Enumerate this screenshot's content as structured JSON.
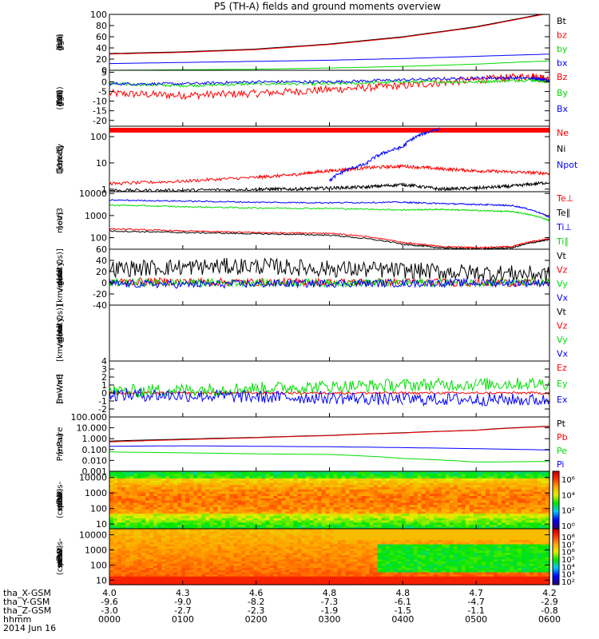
{
  "title": "P5 (TH-A) fields and ground moments overview",
  "colors": {
    "black": "#000000",
    "red": "#ff0000",
    "green": "#00dd00",
    "blue": "#0000ff"
  },
  "chart_data": [
    {
      "id": "fgs_gsm_mag",
      "type": "line",
      "ylabel": [
        "tha",
        "fgs",
        "gsm",
        "[nT]"
      ],
      "yticks": [
        "100",
        "80",
        "60",
        "40",
        "20",
        "0"
      ],
      "ylim": [
        0,
        100
      ],
      "yscale": "linear",
      "x": [
        0,
        60,
        120,
        180,
        240,
        300,
        360
      ],
      "series": [
        {
          "name": "Bt",
          "color": "#000000",
          "values": [
            30,
            33,
            38,
            47,
            60,
            78,
            103
          ]
        },
        {
          "name": "bz",
          "color": "#ff0000",
          "values": [
            29,
            32,
            37,
            46,
            59,
            77,
            102
          ]
        },
        {
          "name": "by",
          "color": "#00dd00",
          "values": [
            0,
            1,
            2,
            4,
            7,
            11,
            17
          ]
        },
        {
          "name": "bx",
          "color": "#0000ff",
          "values": [
            12,
            14,
            16,
            18,
            21,
            25,
            29
          ]
        }
      ]
    },
    {
      "id": "fgs_gsm_detrended",
      "type": "line",
      "ylabel": [
        "tha",
        "fgs",
        "gsm",
        "(-T89)",
        "[nT]"
      ],
      "yticks": [
        "5",
        "0",
        "-5",
        "-10",
        "-15",
        "-20"
      ],
      "ylim": [
        -23,
        6
      ],
      "yscale": "linear",
      "x": [
        0,
        60,
        120,
        180,
        240,
        300,
        345,
        360
      ],
      "series": [
        {
          "name": "Bz",
          "color": "#ff0000",
          "values": [
            -6,
            -7,
            -6,
            -4,
            -2,
            1,
            3,
            1
          ]
        },
        {
          "name": "By",
          "color": "#00dd00",
          "values": [
            -1,
            -2,
            -1,
            -1,
            0,
            0,
            1,
            0
          ]
        },
        {
          "name": "Bx",
          "color": "#0000ff",
          "values": [
            -1,
            -1,
            0,
            0,
            1,
            2,
            2,
            1
          ]
        }
      ]
    },
    {
      "id": "density",
      "type": "line",
      "ylabel": [
        "Density",
        "[1/cc]",
        "[cm-3]"
      ],
      "yticks": [
        "100",
        "10",
        "1"
      ],
      "ylim": [
        0.8,
        250
      ],
      "yscale": "log",
      "x": [
        0,
        60,
        120,
        150,
        180,
        210,
        240,
        270,
        300,
        330,
        360
      ],
      "series": [
        {
          "name": "Ne",
          "color": "#ff0000",
          "values": [
            1.6,
            2.0,
            2.8,
            3.5,
            5,
            6.5,
            7.5,
            6,
            5,
            4.5,
            4
          ]
        },
        {
          "name": "Ni",
          "color": "#000000",
          "values": [
            0.9,
            0.9,
            1.0,
            1.0,
            1.1,
            1.2,
            1.5,
            1.0,
            1.1,
            1.3,
            1.8
          ]
        },
        {
          "name": "Npot",
          "color": "#0000ff",
          "values": [
            null,
            null,
            null,
            null,
            2,
            9,
            40,
            200,
            null,
            null,
            null
          ]
        }
      ]
    },
    {
      "id": "temperature",
      "type": "line",
      "ylabel": [
        "mom3",
        "[eV]"
      ],
      "yticks": [
        "10000",
        "1000",
        "100"
      ],
      "ylim": [
        30,
        12000
      ],
      "yscale": "log",
      "x": [
        0,
        60,
        120,
        180,
        240,
        270,
        300,
        330,
        360
      ],
      "series": [
        {
          "name": "Te⊥",
          "color": "#ff0000",
          "values": [
            250,
            200,
            170,
            160,
            60,
            40,
            35,
            40,
            90
          ]
        },
        {
          "name": "Te∥",
          "color": "#000000",
          "values": [
            200,
            170,
            150,
            130,
            50,
            35,
            30,
            35,
            80
          ]
        },
        {
          "name": "Ti⊥",
          "color": "#0000ff",
          "values": [
            5000,
            4500,
            4000,
            3800,
            4000,
            3500,
            3200,
            2800,
            800
          ]
        },
        {
          "name": "Ti∥",
          "color": "#00dd00",
          "values": [
            3000,
            2500,
            2200,
            2100,
            1800,
            1900,
            1700,
            1500,
            600
          ]
        }
      ]
    },
    {
      "id": "peir_velocity",
      "type": "line",
      "ylabel": [
        "tha",
        "peir",
        "velocity",
        "gsm",
        "[km/s (All Qs)]"
      ],
      "yticks": [
        "60",
        "40",
        "20",
        "0",
        "-20",
        "-40"
      ],
      "ylim": [
        -40,
        60
      ],
      "yscale": "linear",
      "x": [
        0,
        60,
        120,
        180,
        240,
        300,
        360
      ],
      "series": [
        {
          "name": "Vt",
          "color": "#000000",
          "values": [
            25,
            28,
            30,
            25,
            22,
            18,
            15
          ]
        },
        {
          "name": "Vz",
          "color": "#ff0000",
          "values": [
            2,
            2,
            1,
            1,
            1,
            0,
            0
          ]
        },
        {
          "name": "Vy",
          "color": "#00dd00",
          "values": [
            0,
            0,
            0,
            0,
            0,
            0,
            0
          ]
        },
        {
          "name": "Vx",
          "color": "#0000ff",
          "values": [
            -2,
            -3,
            -2,
            -1,
            -1,
            0,
            0
          ]
        }
      ]
    },
    {
      "id": "peer_velocity",
      "type": "line",
      "ylabel": [
        "tha",
        "peer",
        "velocity",
        "gsm",
        "[km/s (All Qs)]"
      ],
      "yticks": [],
      "ylim": [
        -40,
        60
      ],
      "yscale": "linear",
      "x": [],
      "series": [
        {
          "name": "Vt",
          "color": "#000000",
          "values": []
        },
        {
          "name": "Vz",
          "color": "#ff0000",
          "values": []
        },
        {
          "name": "Vy",
          "color": "#00dd00",
          "values": []
        },
        {
          "name": "Vx",
          "color": "#0000ff",
          "values": []
        }
      ]
    },
    {
      "id": "efield",
      "type": "line",
      "ylabel": [
        "E=-VxB",
        "[mV/m]"
      ],
      "yticks": [
        "4",
        "3",
        "2",
        "1",
        "0",
        "-1",
        "-2"
      ],
      "ylim": [
        -3,
        4
      ],
      "yscale": "linear",
      "x": [
        0,
        60,
        120,
        180,
        240,
        300,
        360
      ],
      "series": [
        {
          "name": "Ez",
          "color": "#ff0000",
          "values": [
            0,
            0,
            0,
            0,
            0,
            0,
            0
          ]
        },
        {
          "name": "Ey",
          "color": "#00dd00",
          "values": [
            0.2,
            0.4,
            0.6,
            0.8,
            1.0,
            1.1,
            1.2
          ]
        },
        {
          "name": "Ex",
          "color": "#0000ff",
          "values": [
            -0.2,
            -0.3,
            -0.5,
            -0.6,
            -0.8,
            -0.8,
            -0.9
          ]
        }
      ]
    },
    {
      "id": "pressure",
      "type": "line",
      "ylabel": [
        "Pressure",
        "[nPa]"
      ],
      "yticks": [
        "100.000",
        "10.000",
        "1.000",
        "0.100",
        "0.010",
        "0.001"
      ],
      "ylim": [
        0.001,
        100
      ],
      "yscale": "log",
      "x": [
        0,
        60,
        120,
        180,
        240,
        300,
        360
      ],
      "series": [
        {
          "name": "Pt",
          "color": "#000000",
          "values": [
            0.6,
            0.9,
            1.3,
            2.0,
            3.5,
            6,
            14
          ]
        },
        {
          "name": "Pb",
          "color": "#ff0000",
          "values": [
            0.5,
            0.8,
            1.2,
            1.9,
            3.3,
            5.8,
            13
          ]
        },
        {
          "name": "Pe",
          "color": "#00dd00",
          "values": [
            0.06,
            0.05,
            0.04,
            0.035,
            0.015,
            0.007,
            0.008
          ]
        },
        {
          "name": "Pi",
          "color": "#0000ff",
          "values": [
            0.2,
            0.22,
            0.2,
            0.18,
            0.15,
            0.12,
            0.09
          ]
        }
      ]
    },
    {
      "id": "peir_spectrogram",
      "type": "heatmap",
      "ylabel": [
        "tha",
        "peir",
        "en",
        "eflux",
        "eV",
        "(cm^2-s-",
        "sr-eV)"
      ],
      "yticks": [
        "10000",
        "1000",
        "100",
        "10"
      ],
      "ylim": [
        5,
        25000
      ],
      "yscale": "log",
      "colorbar": {
        "ticks": [
          "10⁶",
          "10⁴",
          "10²",
          "10⁰"
        ]
      }
    },
    {
      "id": "peer_spectrogram",
      "type": "heatmap",
      "ylabel": [
        "tha",
        "peer",
        "en",
        "eflux",
        "eV",
        "(cm^2-s-",
        "sr-eV)"
      ],
      "yticks": [
        "10000",
        "1000",
        "100",
        "10"
      ],
      "ylim": [
        5,
        25000
      ],
      "yscale": "log",
      "colorbar": {
        "ticks": [
          "10⁸",
          "10⁷",
          "10⁶",
          "10⁵",
          "10⁴",
          "10³",
          "10²"
        ]
      }
    }
  ],
  "xaxis": {
    "rows": [
      {
        "label": "tha_X-GSM",
        "values": [
          "4.0",
          "4.3",
          "4.6",
          "4.8",
          "4.8",
          "4.7",
          "4.2"
        ]
      },
      {
        "label": "tha_Y-GSM",
        "values": [
          "-9.6",
          "-9.0",
          "-8.2",
          "-7.3",
          "-6.1",
          "-4.7",
          "-2.9"
        ]
      },
      {
        "label": "tha_Z-GSM",
        "values": [
          "-3.0",
          "-2.7",
          "-2.3",
          "-1.9",
          "-1.5",
          "-1.1",
          "-0.8"
        ]
      },
      {
        "label": "hhmm",
        "values": [
          "0000",
          "0100",
          "0200",
          "0300",
          "0400",
          "0500",
          "0600"
        ]
      }
    ],
    "date": "2014 Jun 16"
  }
}
